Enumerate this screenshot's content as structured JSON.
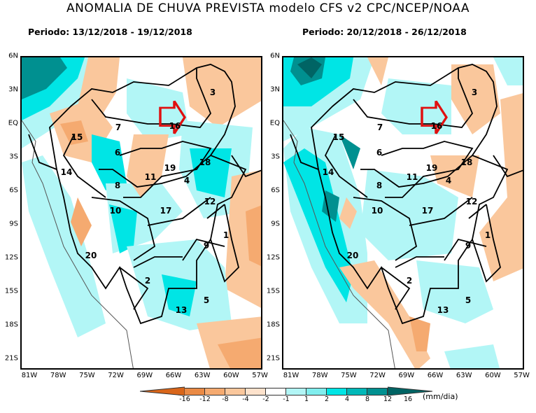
{
  "title": "ANOMALIA DE CHUVA PREVISTA modelo CFS v2 CPC/NCEP/NOAA",
  "panels": [
    {
      "period": "Periodo: 13/12/2018 - 19/12/2018"
    },
    {
      "period": "Periodo: 20/12/2018 - 26/12/2018"
    }
  ],
  "map": {
    "lat_ticks": [
      "6N",
      "3N",
      "EQ",
      "3S",
      "6S",
      "9S",
      "12S",
      "15S",
      "18S",
      "21S"
    ],
    "lon_ticks": [
      "81W",
      "78W",
      "75W",
      "72W",
      "69W",
      "66W",
      "63W",
      "60W",
      "57W"
    ],
    "region_labels": [
      "7",
      "16",
      "3",
      "15",
      "6",
      "14",
      "18",
      "11",
      "19",
      "4",
      "8",
      "12",
      "10",
      "17",
      "1",
      "9",
      "20",
      "2",
      "5",
      "13"
    ],
    "highlight": "red-arrow pointing to region 16"
  },
  "legend": {
    "ticks": [
      "-16",
      "-12",
      "-8",
      "-4",
      "-2",
      "-1",
      "1",
      "2",
      "4",
      "8",
      "12",
      "16"
    ],
    "unit": "(mm/dia)",
    "colors": [
      "#d9661a",
      "#ea8a45",
      "#f5aa70",
      "#fac79c",
      "#fde2cc",
      "#ffffff",
      "#b2f6f6",
      "#80eeee",
      "#00e5e5",
      "#00b8b8",
      "#009090",
      "#006464"
    ]
  }
}
